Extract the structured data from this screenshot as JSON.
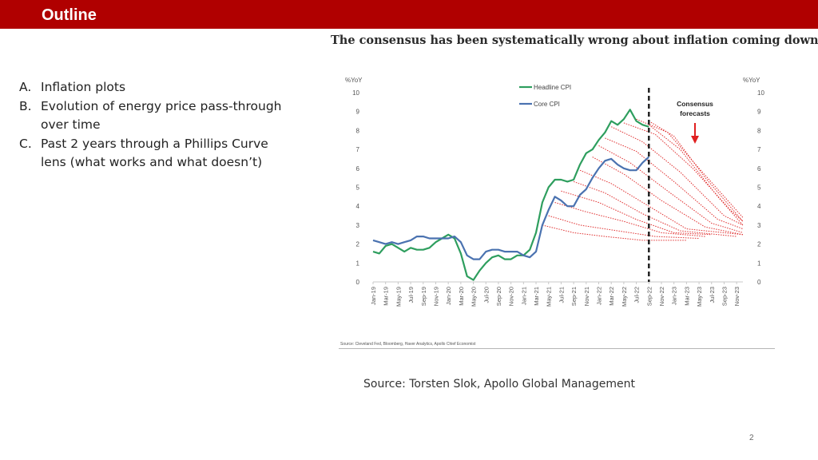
{
  "slide": {
    "title": "Outline",
    "outline_items": [
      {
        "letter": "A.",
        "text": "Inflation plots"
      },
      {
        "letter": "B.",
        "text": "Evolution of energy price pass-through over time"
      },
      {
        "letter": "C.",
        "text": "Past 2 years through a Phillips Curve lens (what works and what doesn’t)"
      }
    ],
    "source": "Source: Torsten Slok, Apollo Global Management",
    "page_number": "2",
    "accent_color": "#b00000"
  },
  "chart_data": {
    "type": "line",
    "title": "The consensus has been systematically wrong about inflation coming down",
    "ylabel_left": "%YoY",
    "ylabel_right": "%YoY",
    "ylim": [
      0,
      10
    ],
    "yticks": [
      0,
      1,
      2,
      3,
      4,
      5,
      6,
      7,
      8,
      9,
      10
    ],
    "x_range": [
      "2019-01",
      "2023-12"
    ],
    "xticks": [
      "Jan-19",
      "Mar-19",
      "May-19",
      "Jul-19",
      "Sep-19",
      "Nov-19",
      "Jan-20",
      "Mar-20",
      "May-20",
      "Jul-20",
      "Sep-20",
      "Nov-20",
      "Jan-21",
      "Mar-21",
      "May-21",
      "Jul-21",
      "Sep-21",
      "Nov-21",
      "Jan-22",
      "Mar-22",
      "May-22",
      "Jul-22",
      "Sep-22",
      "Nov-22",
      "Jan-23",
      "Mar-23",
      "May-23",
      "Jul-23",
      "Sep-23",
      "Nov-23"
    ],
    "legend_position": "top-center",
    "grid": false,
    "series": [
      {
        "name": "Headline CPI",
        "color": "#2e9e5e",
        "points": [
          [
            "2019-01",
            1.6
          ],
          [
            "2019-02",
            1.5
          ],
          [
            "2019-03",
            1.9
          ],
          [
            "2019-04",
            2.0
          ],
          [
            "2019-05",
            1.8
          ],
          [
            "2019-06",
            1.6
          ],
          [
            "2019-07",
            1.8
          ],
          [
            "2019-08",
            1.7
          ],
          [
            "2019-09",
            1.7
          ],
          [
            "2019-10",
            1.8
          ],
          [
            "2019-11",
            2.1
          ],
          [
            "2019-12",
            2.3
          ],
          [
            "2020-01",
            2.5
          ],
          [
            "2020-02",
            2.3
          ],
          [
            "2020-03",
            1.5
          ],
          [
            "2020-04",
            0.3
          ],
          [
            "2020-05",
            0.1
          ],
          [
            "2020-06",
            0.6
          ],
          [
            "2020-07",
            1.0
          ],
          [
            "2020-08",
            1.3
          ],
          [
            "2020-09",
            1.4
          ],
          [
            "2020-10",
            1.2
          ],
          [
            "2020-11",
            1.2
          ],
          [
            "2020-12",
            1.4
          ],
          [
            "2021-01",
            1.4
          ],
          [
            "2021-02",
            1.7
          ],
          [
            "2021-03",
            2.6
          ],
          [
            "2021-04",
            4.2
          ],
          [
            "2021-05",
            5.0
          ],
          [
            "2021-06",
            5.4
          ],
          [
            "2021-07",
            5.4
          ],
          [
            "2021-08",
            5.3
          ],
          [
            "2021-09",
            5.4
          ],
          [
            "2021-10",
            6.2
          ],
          [
            "2021-11",
            6.8
          ],
          [
            "2021-12",
            7.0
          ],
          [
            "2022-01",
            7.5
          ],
          [
            "2022-02",
            7.9
          ],
          [
            "2022-03",
            8.5
          ],
          [
            "2022-04",
            8.3
          ],
          [
            "2022-05",
            8.6
          ],
          [
            "2022-06",
            9.1
          ],
          [
            "2022-07",
            8.5
          ],
          [
            "2022-08",
            8.3
          ],
          [
            "2022-09",
            8.2
          ]
        ]
      },
      {
        "name": "Core CPI",
        "color": "#4a72b0",
        "points": [
          [
            "2019-01",
            2.2
          ],
          [
            "2019-02",
            2.1
          ],
          [
            "2019-03",
            2.0
          ],
          [
            "2019-04",
            2.1
          ],
          [
            "2019-05",
            2.0
          ],
          [
            "2019-06",
            2.1
          ],
          [
            "2019-07",
            2.2
          ],
          [
            "2019-08",
            2.4
          ],
          [
            "2019-09",
            2.4
          ],
          [
            "2019-10",
            2.3
          ],
          [
            "2019-11",
            2.3
          ],
          [
            "2019-12",
            2.3
          ],
          [
            "2020-01",
            2.3
          ],
          [
            "2020-02",
            2.4
          ],
          [
            "2020-03",
            2.1
          ],
          [
            "2020-04",
            1.4
          ],
          [
            "2020-05",
            1.2
          ],
          [
            "2020-06",
            1.2
          ],
          [
            "2020-07",
            1.6
          ],
          [
            "2020-08",
            1.7
          ],
          [
            "2020-09",
            1.7
          ],
          [
            "2020-10",
            1.6
          ],
          [
            "2020-11",
            1.6
          ],
          [
            "2020-12",
            1.6
          ],
          [
            "2021-01",
            1.4
          ],
          [
            "2021-02",
            1.3
          ],
          [
            "2021-03",
            1.6
          ],
          [
            "2021-04",
            3.0
          ],
          [
            "2021-05",
            3.8
          ],
          [
            "2021-06",
            4.5
          ],
          [
            "2021-07",
            4.3
          ],
          [
            "2021-08",
            4.0
          ],
          [
            "2021-09",
            4.0
          ],
          [
            "2021-10",
            4.6
          ],
          [
            "2021-11",
            4.9
          ],
          [
            "2021-12",
            5.5
          ],
          [
            "2022-01",
            6.0
          ],
          [
            "2022-02",
            6.4
          ],
          [
            "2022-03",
            6.5
          ],
          [
            "2022-04",
            6.2
          ],
          [
            "2022-05",
            6.0
          ],
          [
            "2022-06",
            5.9
          ],
          [
            "2022-07",
            5.9
          ],
          [
            "2022-08",
            6.3
          ],
          [
            "2022-09",
            6.6
          ]
        ]
      }
    ],
    "forecast_paths": {
      "color": "#e03030",
      "style": "dotted",
      "paths": [
        [
          [
            "2021-04",
            3.0
          ],
          [
            "2021-09",
            2.6
          ],
          [
            "2022-02",
            2.4
          ],
          [
            "2022-08",
            2.2
          ],
          [
            "2023-03",
            2.2
          ]
        ],
        [
          [
            "2021-05",
            3.5
          ],
          [
            "2021-10",
            3.0
          ],
          [
            "2022-04",
            2.7
          ],
          [
            "2022-10",
            2.4
          ],
          [
            "2023-05",
            2.3
          ]
        ],
        [
          [
            "2021-06",
            4.2
          ],
          [
            "2021-11",
            3.7
          ],
          [
            "2022-05",
            3.2
          ],
          [
            "2022-11",
            2.6
          ],
          [
            "2023-06",
            2.4
          ]
        ],
        [
          [
            "2021-07",
            4.8
          ],
          [
            "2022-01",
            4.2
          ],
          [
            "2022-07",
            3.3
          ],
          [
            "2023-01",
            2.6
          ],
          [
            "2023-07",
            2.5
          ]
        ],
        [
          [
            "2021-09",
            5.3
          ],
          [
            "2022-02",
            4.7
          ],
          [
            "2022-08",
            3.6
          ],
          [
            "2023-02",
            2.7
          ],
          [
            "2023-11",
            2.4
          ]
        ],
        [
          [
            "2021-10",
            5.9
          ],
          [
            "2022-03",
            5.2
          ],
          [
            "2022-09",
            4.0
          ],
          [
            "2023-03",
            2.8
          ],
          [
            "2023-12",
            2.5
          ]
        ],
        [
          [
            "2021-12",
            6.6
          ],
          [
            "2022-05",
            5.7
          ],
          [
            "2022-11",
            4.3
          ],
          [
            "2023-06",
            2.9
          ],
          [
            "2023-12",
            2.5
          ]
        ],
        [
          [
            "2022-01",
            7.2
          ],
          [
            "2022-06",
            6.3
          ],
          [
            "2022-12",
            4.8
          ],
          [
            "2023-07",
            3.1
          ],
          [
            "2023-12",
            2.6
          ]
        ],
        [
          [
            "2022-02",
            7.6
          ],
          [
            "2022-07",
            6.9
          ],
          [
            "2023-01",
            5.3
          ],
          [
            "2023-08",
            3.3
          ],
          [
            "2023-12",
            2.8
          ]
        ],
        [
          [
            "2022-03",
            8.2
          ],
          [
            "2022-08",
            7.4
          ],
          [
            "2023-02",
            5.8
          ],
          [
            "2023-09",
            3.5
          ],
          [
            "2023-12",
            3.0
          ]
        ],
        [
          [
            "2022-05",
            8.4
          ],
          [
            "2022-10",
            7.8
          ],
          [
            "2023-04",
            6.0
          ],
          [
            "2023-10",
            3.8
          ],
          [
            "2023-12",
            3.2
          ]
        ],
        [
          [
            "2022-07",
            8.6
          ],
          [
            "2022-12",
            7.9
          ],
          [
            "2023-05",
            6.0
          ],
          [
            "2023-12",
            3.4
          ]
        ],
        [
          [
            "2022-09",
            8.5
          ],
          [
            "2023-01",
            7.7
          ],
          [
            "2023-06",
            5.5
          ],
          [
            "2023-12",
            3.2
          ]
        ],
        [
          [
            "2022-09",
            8.3
          ],
          [
            "2023-02",
            7.0
          ],
          [
            "2023-08",
            4.5
          ],
          [
            "2023-12",
            3.0
          ]
        ]
      ]
    },
    "vertical_marker": {
      "x": "2022-09",
      "style": "dashed",
      "color": "#222222"
    },
    "annotation": {
      "text": "Consensus forecasts",
      "lines": [
        "Consensus",
        "forecasts"
      ],
      "arrow_color": "#e02020",
      "position": "upper-right"
    },
    "source_note": "Source: Cleveland Fed, Bloomberg, Haver Analytics, Apollo Chief Economist"
  }
}
